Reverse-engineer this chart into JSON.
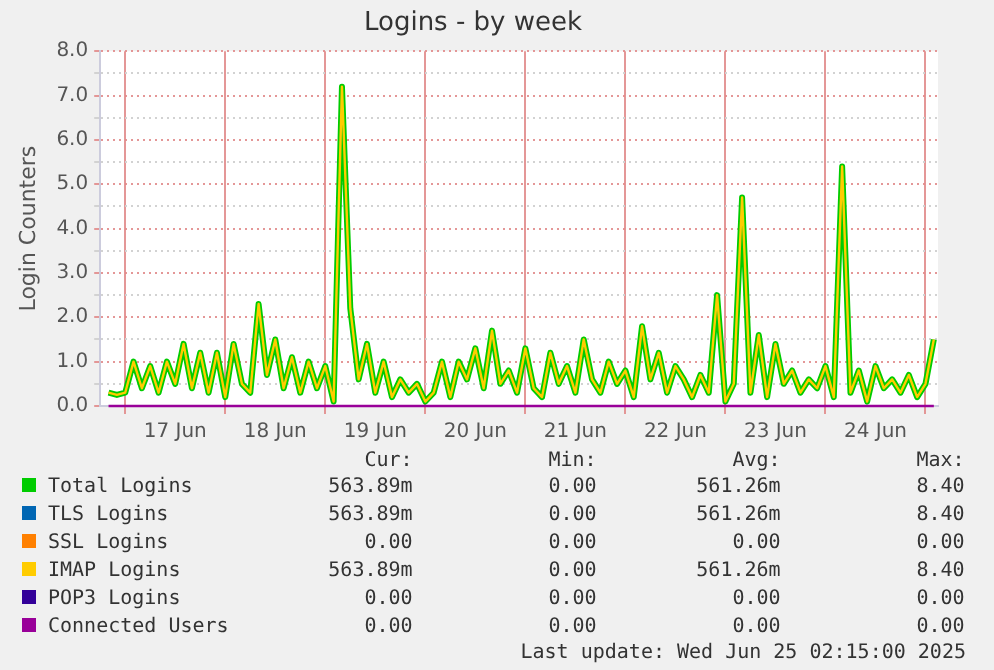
{
  "chart_data": {
    "type": "line",
    "title": "Logins - by week",
    "ylabel": "Login Counters",
    "x": [
      "2025-06-16T20:00",
      "2025-06-16T22:00",
      "2025-06-17T00:00",
      "2025-06-17T02:00",
      "2025-06-17T04:00",
      "2025-06-17T06:00",
      "2025-06-17T08:00",
      "2025-06-17T10:00",
      "2025-06-17T12:00",
      "2025-06-17T14:00",
      "2025-06-17T16:00",
      "2025-06-17T18:00",
      "2025-06-17T20:00",
      "2025-06-17T22:00",
      "2025-06-18T00:00",
      "2025-06-18T02:00",
      "2025-06-18T04:00",
      "2025-06-18T06:00",
      "2025-06-18T08:00",
      "2025-06-18T10:00",
      "2025-06-18T12:00",
      "2025-06-18T14:00",
      "2025-06-18T16:00",
      "2025-06-18T18:00",
      "2025-06-18T20:00",
      "2025-06-18T22:00",
      "2025-06-19T00:00",
      "2025-06-19T02:00",
      "2025-06-19T04:00",
      "2025-06-19T06:00",
      "2025-06-19T08:00",
      "2025-06-19T10:00",
      "2025-06-19T12:00",
      "2025-06-19T14:00",
      "2025-06-19T16:00",
      "2025-06-19T18:00",
      "2025-06-19T20:00",
      "2025-06-19T22:00",
      "2025-06-20T00:00",
      "2025-06-20T02:00",
      "2025-06-20T04:00",
      "2025-06-20T06:00",
      "2025-06-20T08:00",
      "2025-06-20T10:00",
      "2025-06-20T12:00",
      "2025-06-20T14:00",
      "2025-06-20T16:00",
      "2025-06-20T18:00",
      "2025-06-20T20:00",
      "2025-06-20T22:00",
      "2025-06-21T00:00",
      "2025-06-21T02:00",
      "2025-06-21T04:00",
      "2025-06-21T06:00",
      "2025-06-21T08:00",
      "2025-06-21T10:00",
      "2025-06-21T12:00",
      "2025-06-21T14:00",
      "2025-06-21T16:00",
      "2025-06-21T18:00",
      "2025-06-21T20:00",
      "2025-06-21T22:00",
      "2025-06-22T00:00",
      "2025-06-22T02:00",
      "2025-06-22T04:00",
      "2025-06-22T06:00",
      "2025-06-22T08:00",
      "2025-06-22T10:00",
      "2025-06-22T12:00",
      "2025-06-22T14:00",
      "2025-06-22T16:00",
      "2025-06-22T18:00",
      "2025-06-22T20:00",
      "2025-06-22T22:00",
      "2025-06-23T00:00",
      "2025-06-23T02:00",
      "2025-06-23T04:00",
      "2025-06-23T06:00",
      "2025-06-23T08:00",
      "2025-06-23T10:00",
      "2025-06-23T12:00",
      "2025-06-23T14:00",
      "2025-06-23T16:00",
      "2025-06-23T18:00",
      "2025-06-23T20:00",
      "2025-06-23T22:00",
      "2025-06-24T00:00",
      "2025-06-24T02:00",
      "2025-06-24T04:00",
      "2025-06-24T06:00",
      "2025-06-24T08:00",
      "2025-06-24T10:00",
      "2025-06-24T12:00",
      "2025-06-24T14:00",
      "2025-06-24T16:00",
      "2025-06-24T18:00",
      "2025-06-24T20:00",
      "2025-06-24T22:00",
      "2025-06-25T00:00",
      "2025-06-25T02:00"
    ],
    "series": [
      {
        "name": "Total Logins",
        "color": "#00cc00",
        "values": [
          0.3,
          0.25,
          0.3,
          1.0,
          0.4,
          0.9,
          0.3,
          1.0,
          0.5,
          1.4,
          0.4,
          1.2,
          0.3,
          1.2,
          0.2,
          1.4,
          0.5,
          0.3,
          2.3,
          0.7,
          1.5,
          0.4,
          1.1,
          0.3,
          1.0,
          0.4,
          0.9,
          0.1,
          7.2,
          2.2,
          0.6,
          1.4,
          0.3,
          1.0,
          0.2,
          0.6,
          0.3,
          0.5,
          0.1,
          0.3,
          1.0,
          0.2,
          1.0,
          0.6,
          1.3,
          0.4,
          1.7,
          0.5,
          0.8,
          0.3,
          1.3,
          0.4,
          0.2,
          1.2,
          0.5,
          0.9,
          0.3,
          1.5,
          0.6,
          0.3,
          1.0,
          0.5,
          0.8,
          0.2,
          1.8,
          0.6,
          1.2,
          0.3,
          0.9,
          0.6,
          0.2,
          0.7,
          0.3,
          2.5,
          0.1,
          0.5,
          4.7,
          0.3,
          1.6,
          0.2,
          1.4,
          0.5,
          0.8,
          0.3,
          0.6,
          0.4,
          0.9,
          0.2,
          5.4,
          0.3,
          0.8,
          0.1,
          0.9,
          0.4,
          0.6,
          0.3,
          0.7,
          0.2,
          0.5,
          1.5
        ]
      },
      {
        "name": "TLS Logins",
        "color": "#0066b3",
        "values": [
          null,
          null,
          null,
          null,
          null,
          null,
          null,
          null,
          null,
          null,
          null,
          null,
          null,
          null,
          null,
          null,
          null,
          null,
          null,
          null,
          null,
          null,
          null,
          null,
          null,
          null,
          null,
          null,
          null,
          null,
          null,
          null,
          null,
          null,
          null,
          null,
          null,
          null,
          null,
          null,
          null,
          null,
          null,
          null,
          null,
          null,
          null,
          null,
          null,
          null,
          null,
          null,
          null,
          null,
          null,
          null,
          null,
          null,
          null,
          null,
          null,
          null,
          null,
          null,
          null,
          null,
          null,
          null,
          null,
          null,
          null,
          null,
          null,
          null,
          null,
          null,
          null,
          null,
          null,
          null,
          null,
          null,
          null,
          null,
          null,
          null,
          null,
          null,
          null,
          null,
          null,
          null,
          null,
          null,
          null,
          null,
          null,
          null,
          null,
          null
        ]
      },
      {
        "name": "SSL Logins",
        "color": "#ff8000",
        "values": [
          null,
          null,
          null,
          null,
          null,
          null,
          null,
          null,
          null,
          null,
          null,
          null,
          null,
          null,
          null,
          null,
          null,
          null,
          null,
          null,
          null,
          null,
          null,
          null,
          null,
          null,
          null,
          null,
          null,
          null,
          null,
          null,
          null,
          null,
          null,
          null,
          null,
          null,
          null,
          null,
          null,
          null,
          null,
          null,
          null,
          null,
          null,
          null,
          null,
          null,
          null,
          null,
          null,
          null,
          null,
          null,
          null,
          null,
          null,
          null,
          null,
          null,
          null,
          null,
          null,
          null,
          null,
          null,
          null,
          null,
          null,
          null,
          null,
          null,
          null,
          null,
          null,
          null,
          null,
          null,
          null,
          null,
          null,
          null,
          null,
          null,
          null,
          null,
          null,
          null,
          null,
          null,
          null,
          null,
          null,
          null,
          null,
          null,
          null,
          null
        ]
      },
      {
        "name": "IMAP Logins",
        "color": "#ffcc00",
        "values": [
          0.3,
          0.25,
          0.3,
          1.0,
          0.4,
          0.9,
          0.3,
          1.0,
          0.5,
          1.4,
          0.4,
          1.2,
          0.3,
          1.2,
          0.2,
          1.4,
          0.5,
          0.3,
          2.3,
          0.7,
          1.5,
          0.4,
          1.1,
          0.3,
          1.0,
          0.4,
          0.9,
          0.1,
          7.2,
          2.2,
          0.6,
          1.4,
          0.3,
          1.0,
          0.2,
          0.6,
          0.3,
          0.5,
          0.1,
          0.3,
          1.0,
          0.2,
          1.0,
          0.6,
          1.3,
          0.4,
          1.7,
          0.5,
          0.8,
          0.3,
          1.3,
          0.4,
          0.2,
          1.2,
          0.5,
          0.9,
          0.3,
          1.5,
          0.6,
          0.3,
          1.0,
          0.5,
          0.8,
          0.2,
          1.8,
          0.6,
          1.2,
          0.3,
          0.9,
          0.6,
          0.2,
          0.7,
          0.3,
          2.5,
          0.1,
          0.5,
          4.7,
          0.3,
          1.6,
          0.2,
          1.4,
          0.5,
          0.8,
          0.3,
          0.6,
          0.4,
          0.9,
          0.2,
          5.4,
          0.3,
          0.8,
          0.1,
          0.9,
          0.4,
          0.6,
          0.3,
          0.7,
          0.2,
          0.5,
          1.5
        ]
      },
      {
        "name": "POP3 Logins",
        "color": "#330099",
        "values": [
          null,
          null,
          null,
          null,
          null,
          null,
          null,
          null,
          null,
          null,
          null,
          null,
          null,
          null,
          null,
          null,
          null,
          null,
          null,
          null,
          null,
          null,
          null,
          null,
          null,
          null,
          null,
          null,
          null,
          null,
          null,
          null,
          null,
          null,
          null,
          null,
          null,
          null,
          null,
          null,
          null,
          null,
          null,
          null,
          null,
          null,
          null,
          null,
          null,
          null,
          null,
          null,
          null,
          null,
          null,
          null,
          null,
          null,
          null,
          null,
          null,
          null,
          null,
          null,
          null,
          null,
          null,
          null,
          null,
          null,
          null,
          null,
          null,
          null,
          null,
          null,
          null,
          null,
          null,
          null,
          null,
          null,
          null,
          null,
          null,
          null,
          null,
          null,
          null,
          null,
          null,
          null,
          null,
          null,
          null,
          null,
          null,
          null,
          null,
          null
        ]
      },
      {
        "name": "Connected Users",
        "color": "#990099",
        "values": [
          0,
          0,
          0,
          0,
          0,
          0,
          0,
          0,
          0,
          0,
          0,
          0,
          0,
          0,
          0,
          0,
          0,
          0,
          0,
          0,
          0,
          0,
          0,
          0,
          0,
          0,
          0,
          0,
          0,
          0,
          0,
          0,
          0,
          0,
          0,
          0,
          0,
          0,
          0,
          0,
          0,
          0,
          0,
          0,
          0,
          0,
          0,
          0,
          0,
          0,
          0,
          0,
          0,
          0,
          0,
          0,
          0,
          0,
          0,
          0,
          0,
          0,
          0,
          0,
          0,
          0,
          0,
          0,
          0,
          0,
          0,
          0,
          0,
          0,
          0,
          0,
          0,
          0,
          0,
          0,
          0,
          0,
          0,
          0,
          0,
          0,
          0,
          0,
          0,
          0,
          0,
          0,
          0,
          0,
          0,
          0,
          0,
          0,
          0,
          0
        ]
      }
    ],
    "xlim": [
      "2025-06-16T18:00",
      "2025-06-25T03:00"
    ],
    "xticks": [
      {
        "value": "2025-06-17T00:00",
        "label": null
      },
      {
        "value": "2025-06-17T12:00",
        "label": "17 Jun"
      },
      {
        "value": "2025-06-18T00:00",
        "label": null
      },
      {
        "value": "2025-06-18T12:00",
        "label": "18 Jun"
      },
      {
        "value": "2025-06-19T00:00",
        "label": null
      },
      {
        "value": "2025-06-19T12:00",
        "label": "19 Jun"
      },
      {
        "value": "2025-06-20T00:00",
        "label": null
      },
      {
        "value": "2025-06-20T12:00",
        "label": "20 Jun"
      },
      {
        "value": "2025-06-21T00:00",
        "label": null
      },
      {
        "value": "2025-06-21T12:00",
        "label": "21 Jun"
      },
      {
        "value": "2025-06-22T00:00",
        "label": null
      },
      {
        "value": "2025-06-22T12:00",
        "label": "22 Jun"
      },
      {
        "value": "2025-06-23T00:00",
        "label": null
      },
      {
        "value": "2025-06-23T12:00",
        "label": "23 Jun"
      },
      {
        "value": "2025-06-24T00:00",
        "label": null
      },
      {
        "value": "2025-06-24T12:00",
        "label": "24 Jun"
      },
      {
        "value": "2025-06-25T00:00",
        "label": null
      }
    ],
    "ylim": [
      0,
      8
    ],
    "yticks": [
      {
        "value": 0,
        "label": "0.0"
      },
      {
        "value": 0.5,
        "label": null
      },
      {
        "value": 1,
        "label": "1.0"
      },
      {
        "value": 1.5,
        "label": null
      },
      {
        "value": 2,
        "label": "2.0"
      },
      {
        "value": 2.5,
        "label": null
      },
      {
        "value": 3,
        "label": "3.0"
      },
      {
        "value": 3.5,
        "label": null
      },
      {
        "value": 4,
        "label": "4.0"
      },
      {
        "value": 4.5,
        "label": null
      },
      {
        "value": 5,
        "label": "5.0"
      },
      {
        "value": 5.5,
        "label": null
      },
      {
        "value": 6,
        "label": "6.0"
      },
      {
        "value": 6.5,
        "label": null
      },
      {
        "value": 7,
        "label": "7.0"
      },
      {
        "value": 7.5,
        "label": null
      },
      {
        "value": 8,
        "label": "8.0"
      }
    ],
    "grid": true,
    "legend": "bottom",
    "marker": "none",
    "line_style": "solid",
    "annotations": [
      "Cur:",
      "Min:",
      "Avg:",
      "Max:",
      "563.89m",
      "0.00",
      "561.26m",
      "8.40",
      "563.89m",
      "0.00",
      "561.26m",
      "8.40",
      "0.00",
      "0.00",
      "0.00",
      "0.00",
      "563.89m",
      "0.00",
      "561.26m",
      "8.40",
      "0.00",
      "0.00",
      "0.00",
      "0.00",
      "0.00",
      "0.00",
      "0.00",
      "0.00",
      "Last update: Wed Jun 25 02:15:00 2025"
    ]
  }
}
